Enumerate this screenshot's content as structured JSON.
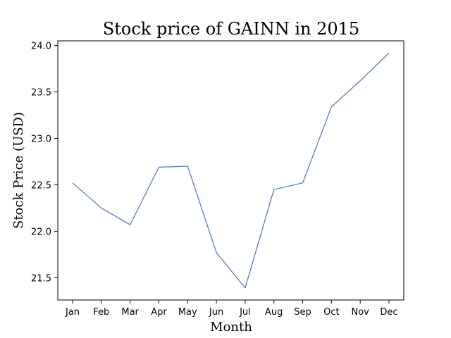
{
  "chart_data": {
    "type": "line",
    "title": "Stock price of GAINN in 2015",
    "xlabel": "Month",
    "ylabel": "Stock Price (USD)",
    "categories": [
      "Jan",
      "Feb",
      "Mar",
      "Apr",
      "May",
      "Jun",
      "Jul",
      "Aug",
      "Sep",
      "Oct",
      "Nov",
      "Dec"
    ],
    "series": [
      {
        "values": [
          22.52,
          22.25,
          22.07,
          22.69,
          22.7,
          21.77,
          21.39,
          22.45,
          22.52,
          23.34,
          23.62,
          23.92
        ]
      }
    ],
    "ylim": [
      21.26,
      24.05
    ],
    "yticks": [
      21.5,
      22.0,
      22.5,
      23.0,
      23.5,
      24.0
    ],
    "ytick_labels": [
      "21.5",
      "22.0",
      "22.5",
      "23.0",
      "23.5",
      "24.0"
    ],
    "grid": false,
    "line_color": "#4472c4"
  }
}
